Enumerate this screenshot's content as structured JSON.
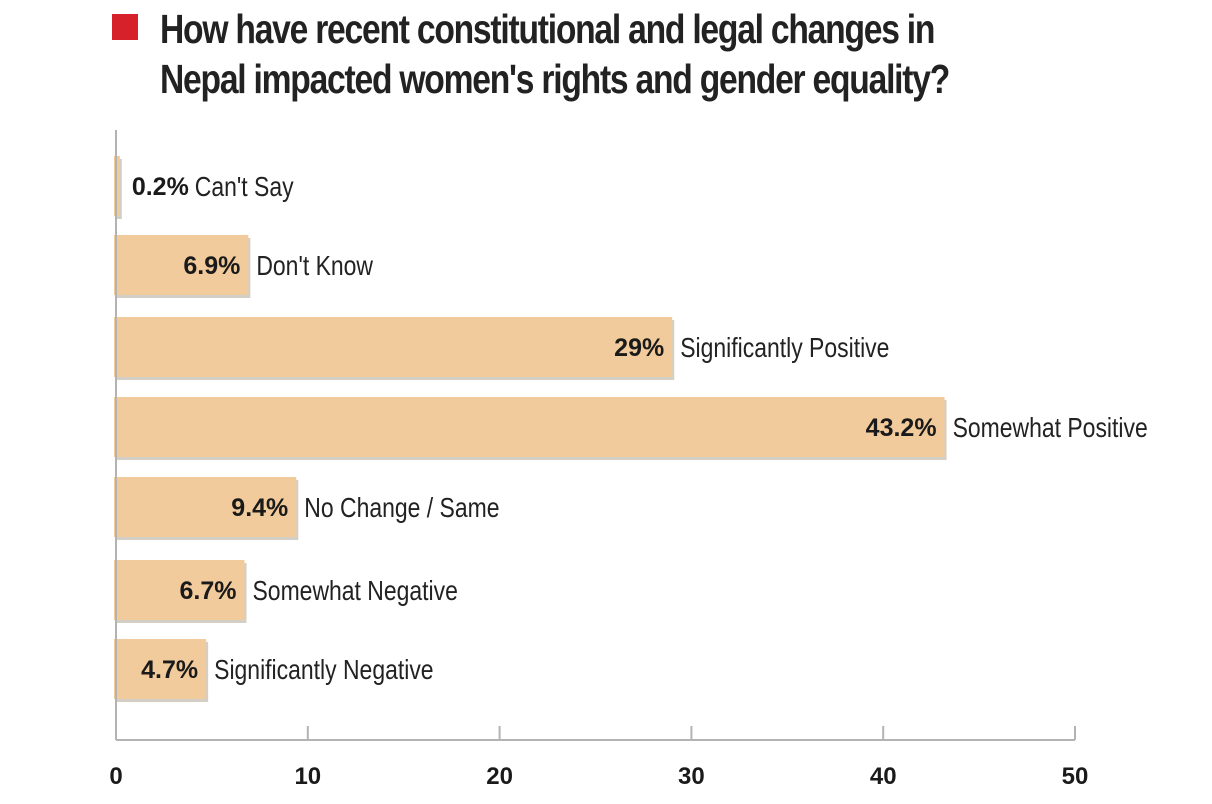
{
  "chart_data": {
    "type": "bar",
    "orientation": "horizontal",
    "title": "How have recent constitutional and legal changes in Nepal impacted women's rights and gender equality?",
    "categories": [
      "Can't Say",
      "Don't Know",
      "Significantly Positive",
      "Somewhat Positive",
      "No Change / Same",
      "Somewhat Negative",
      "Significantly Negative"
    ],
    "values": [
      0.2,
      6.9,
      29,
      43.2,
      9.4,
      6.7,
      4.7
    ],
    "value_labels": [
      "0.2%",
      "6.9%",
      "29%",
      "43.2%",
      "9.4%",
      "6.7%",
      "4.7%"
    ],
    "xlim": [
      0,
      50
    ],
    "xticks": [
      0,
      10,
      20,
      30,
      40,
      50
    ],
    "xtick_labels": [
      "0",
      "10",
      "20",
      "30",
      "40",
      "50"
    ],
    "grid": false,
    "legend": "none"
  },
  "colors": {
    "bar": "#f2cb9c",
    "title_marker": "#d6202a",
    "axis": "#b3b3b3",
    "text": "#1a1a1a"
  }
}
